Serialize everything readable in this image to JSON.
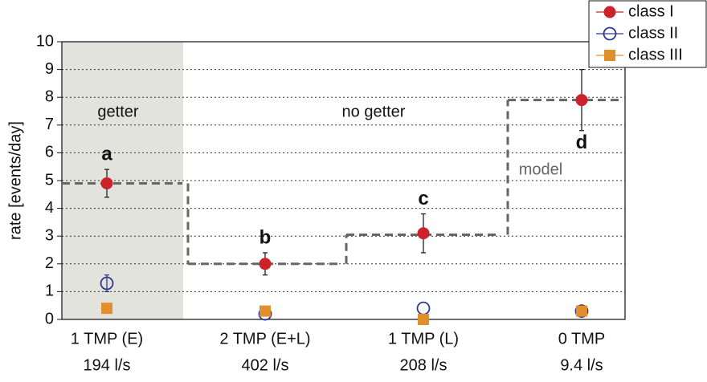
{
  "chart_data": {
    "type": "errorbar",
    "y_label": "rate [events/day]",
    "categories": [
      "1 TMP (E)",
      "2 TMP (E+L)",
      "1 TMP (L)",
      "0 TMP"
    ],
    "pumping_speeds": [
      "194 l/s",
      "402 l/s",
      "208 l/s",
      "9.4 l/s"
    ],
    "ylim": [
      0,
      10
    ],
    "yticks": [
      0,
      1,
      2,
      3,
      4,
      5,
      6,
      7,
      8,
      9,
      10
    ],
    "grid": true,
    "series": [
      {
        "name": "class I",
        "color": "#cc2229",
        "marker": "filled-circle",
        "values": [
          4.9,
          2.0,
          3.1,
          7.9
        ],
        "errors": [
          0.5,
          0.4,
          0.7,
          1.1
        ]
      },
      {
        "name": "class II",
        "color": "#2b3a8f",
        "marker": "open-circle",
        "values": [
          1.3,
          0.2,
          0.4,
          0.3
        ],
        "errors": [
          0.3,
          null,
          null,
          null
        ]
      },
      {
        "name": "class III",
        "color": "#e08f2a",
        "marker": "square",
        "values": [
          0.4,
          0.3,
          0.0,
          0.3
        ]
      }
    ],
    "point_labels": [
      "a",
      "b",
      "c",
      "d"
    ],
    "model": {
      "name": "model",
      "color": "#666666",
      "values": [
        4.9,
        2.0,
        3.05,
        7.9
      ]
    },
    "regions": {
      "getter": "getter",
      "no_getter": "no getter"
    },
    "legend": "top-right"
  }
}
